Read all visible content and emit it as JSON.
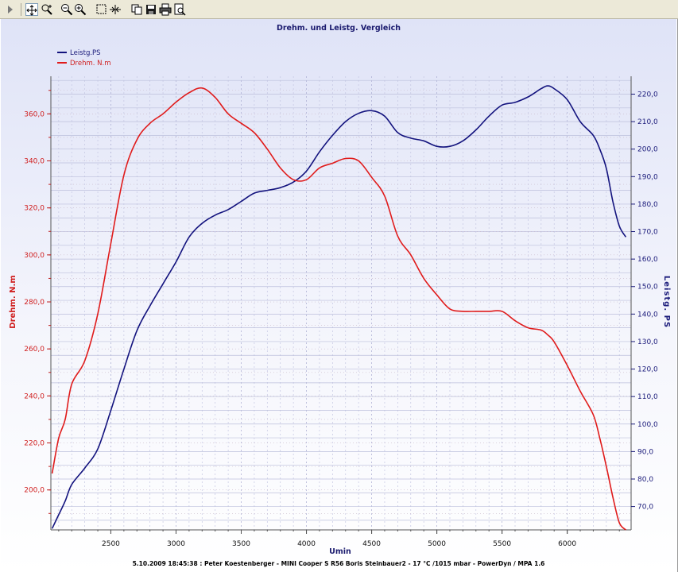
{
  "toolbar": {
    "icons": [
      "play-icon",
      "pan-icon",
      "zoom-region-icon",
      "zoom-out-icon",
      "zoom-in-icon",
      "select-rect-icon",
      "fit-icon",
      "copy-icon",
      "save-icon",
      "print-icon",
      "print-preview-icon"
    ]
  },
  "colors": {
    "torque": "#e01b1b",
    "power": "#13137e",
    "axis_torque": "#d02020",
    "axis_power": "#1a1a7a",
    "grid": "#b8b8d8"
  },
  "chart_data": {
    "type": "line",
    "title": "Drehm. und Leistg. Vergleich",
    "xlabel": "Umin",
    "ylabel_left": "Drehm. N.m",
    "ylabel_right": "Leistg. PS",
    "footer": "5.10.2009 18:45:38 : Peter Koestenberger - MINI Cooper S R56 Boris Steinbauer2 - 17 °C /1015 mbar - PowerDyn / MPA 1.6",
    "xlim": [
      2040,
      6490
    ],
    "ylim_left": [
      183,
      376
    ],
    "ylim_right": [
      61.5,
      226.5
    ],
    "x_ticks": [
      "2500",
      "3000",
      "3500",
      "4000",
      "4500",
      "5000",
      "5500",
      "6000"
    ],
    "y_ticks_left": [
      "200,0",
      "220,0",
      "240,0",
      "260,0",
      "280,0",
      "300,0",
      "320,0",
      "340,0",
      "360,0"
    ],
    "y_ticks_right": [
      "70,0",
      "80,0",
      "90,0",
      "100,0",
      "110,0",
      "120,0",
      "130,0",
      "140,0",
      "150,0",
      "160,0",
      "170,0",
      "180,0",
      "190,0",
      "200,0",
      "210,0",
      "220,0"
    ],
    "legend": [
      "Leistg.PS",
      "Drehm. N.m"
    ],
    "legend_position": "top-left",
    "grid": true,
    "series": [
      {
        "name": "Leistg.PS",
        "axis": "right",
        "x": [
          2050,
          2100,
          2150,
          2200,
          2300,
          2400,
          2500,
          2600,
          2700,
          2800,
          2900,
          3000,
          3100,
          3200,
          3300,
          3400,
          3500,
          3600,
          3700,
          3800,
          3900,
          4000,
          4100,
          4200,
          4300,
          4400,
          4500,
          4600,
          4700,
          4800,
          4900,
          5000,
          5100,
          5200,
          5300,
          5400,
          5500,
          5600,
          5700,
          5800,
          5850,
          5900,
          6000,
          6100,
          6200,
          6250,
          6300,
          6350,
          6400,
          6450
        ],
        "y": [
          62,
          67,
          72,
          78,
          84,
          91,
          105,
          120,
          134,
          143,
          151,
          159,
          168,
          173,
          176,
          178,
          181,
          184,
          185,
          186,
          188,
          192,
          199,
          205,
          210,
          213,
          214,
          212,
          206,
          204,
          203,
          201,
          201,
          203,
          207,
          212,
          216,
          217,
          219,
          222,
          223,
          222,
          218,
          210,
          205,
          200,
          193,
          181,
          172,
          168
        ]
      },
      {
        "name": "Drehm. N.m",
        "axis": "left",
        "x": [
          2050,
          2100,
          2150,
          2200,
          2300,
          2400,
          2500,
          2600,
          2700,
          2800,
          2900,
          3000,
          3100,
          3200,
          3300,
          3400,
          3500,
          3600,
          3700,
          3800,
          3900,
          4000,
          4100,
          4200,
          4300,
          4400,
          4500,
          4600,
          4700,
          4800,
          4900,
          5000,
          5100,
          5200,
          5300,
          5400,
          5500,
          5600,
          5700,
          5800,
          5850,
          5900,
          6000,
          6100,
          6200,
          6250,
          6300,
          6350,
          6400,
          6450
        ],
        "y": [
          207,
          222,
          230,
          245,
          255,
          275,
          305,
          334,
          349,
          356,
          360,
          365,
          369,
          371,
          367,
          360,
          356,
          352,
          345,
          337,
          332,
          332,
          337,
          339,
          341,
          340,
          333,
          325,
          308,
          300,
          290,
          283,
          277,
          276,
          276,
          276,
          276,
          272,
          269,
          268,
          266,
          263,
          253,
          242,
          232,
          222,
          210,
          197,
          186,
          183
        ]
      }
    ]
  }
}
